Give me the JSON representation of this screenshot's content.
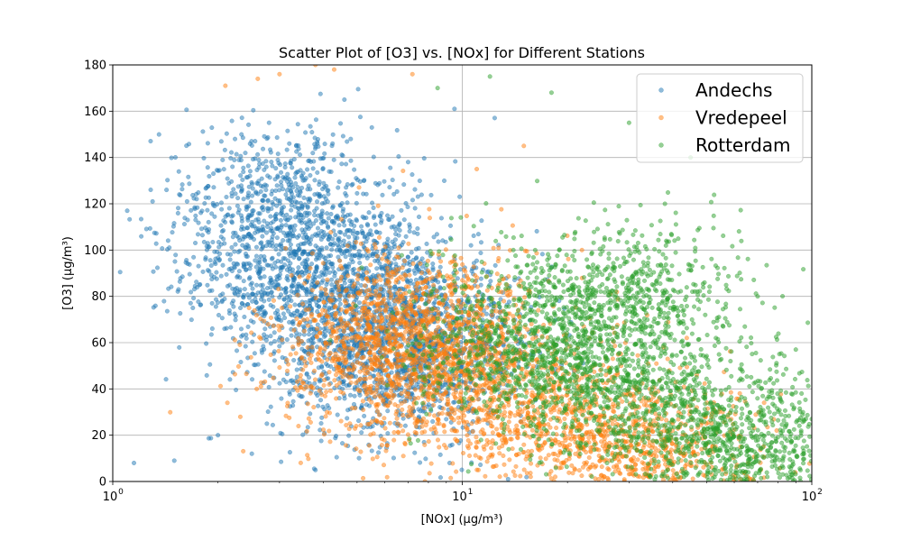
{
  "chart_data": {
    "type": "scatter",
    "title": "Scatter Plot of [O3] vs. [NOx] for Different Stations",
    "xlabel": "[NOx] (µg/m³)",
    "ylabel": "[O3] (µg/m³)",
    "xscale": "log",
    "xlim": [
      1,
      100
    ],
    "ylim": [
      0,
      180
    ],
    "x_ticks": [
      {
        "value": 1,
        "base": "10",
        "exp": "0"
      },
      {
        "value": 10,
        "base": "10",
        "exp": "1"
      },
      {
        "value": 100,
        "base": "10",
        "exp": "2"
      }
    ],
    "y_ticks": [
      "0",
      "20",
      "40",
      "60",
      "80",
      "100",
      "120",
      "140",
      "160",
      "180"
    ],
    "grid": true,
    "legend_position": "top-right",
    "series": [
      {
        "name": "Andechs",
        "color": "#1f77b4",
        "cluster_centers": [
          [
            3.5,
            90
          ],
          [
            5.0,
            80
          ],
          [
            6.0,
            50
          ],
          [
            3.0,
            120
          ],
          [
            8.0,
            60
          ]
        ],
        "points": [
          [
            1.1,
            117
          ],
          [
            1.15,
            8
          ],
          [
            1.3,
            121
          ],
          [
            1.5,
            9
          ],
          [
            2.2,
            136
          ],
          [
            2.8,
            155
          ],
          [
            3.2,
            146
          ],
          [
            4.6,
            165
          ],
          [
            7.0,
            138
          ],
          [
            9.5,
            161
          ],
          [
            9.2,
            8
          ],
          [
            2.0,
            20
          ],
          [
            2.5,
            12
          ]
        ]
      },
      {
        "name": "Vredepeel",
        "color": "#ff7f0e",
        "cluster_centers": [
          [
            6.0,
            55
          ],
          [
            10.0,
            45
          ],
          [
            20.0,
            25
          ],
          [
            35.0,
            8
          ],
          [
            8.0,
            70
          ]
        ],
        "points": [
          [
            2.1,
            171
          ],
          [
            2.6,
            174
          ],
          [
            3.0,
            176
          ],
          [
            3.8,
            180
          ],
          [
            4.3,
            178
          ],
          [
            7.2,
            176
          ],
          [
            11.0,
            135
          ],
          [
            15.0,
            145
          ],
          [
            22.0,
            100
          ],
          [
            60.0,
            1
          ]
        ]
      },
      {
        "name": "Rotterdam",
        "color": "#2ca02c",
        "cluster_centers": [
          [
            15.0,
            60
          ],
          [
            25.0,
            45
          ],
          [
            50.0,
            20
          ],
          [
            80.0,
            8
          ],
          [
            30.0,
            80
          ]
        ],
        "points": [
          [
            8.5,
            170
          ],
          [
            12.0,
            175
          ],
          [
            18.0,
            168
          ],
          [
            30.0,
            155
          ],
          [
            45.0,
            140
          ],
          [
            70.0,
            80
          ],
          [
            90.0,
            57
          ],
          [
            100.0,
            27
          ],
          [
            14.0,
            100
          ],
          [
            38.0,
            120
          ]
        ]
      }
    ]
  }
}
